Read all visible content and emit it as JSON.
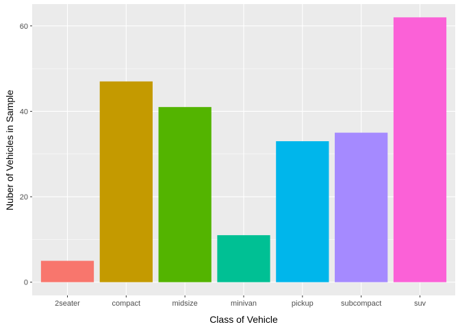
{
  "chart_data": {
    "type": "bar",
    "xlabel": "Class of Vehicle",
    "ylabel": "Nuber of Vehicles in Sample",
    "categories": [
      "2seater",
      "compact",
      "midsize",
      "minivan",
      "pickup",
      "subcompact",
      "suv"
    ],
    "values": [
      5,
      47,
      41,
      11,
      33,
      35,
      62
    ],
    "ylim": [
      -3.1,
      65.1
    ],
    "yticks": [
      0,
      20,
      40,
      60
    ],
    "grid": true,
    "legend": "none",
    "colors": [
      "#F8766D",
      "#C49A00",
      "#53B400",
      "#00C094",
      "#00B6EB",
      "#A58AFF",
      "#FB61D7"
    ],
    "panel_background": "#EBEBEB",
    "grid_color": "#FFFFFF"
  }
}
